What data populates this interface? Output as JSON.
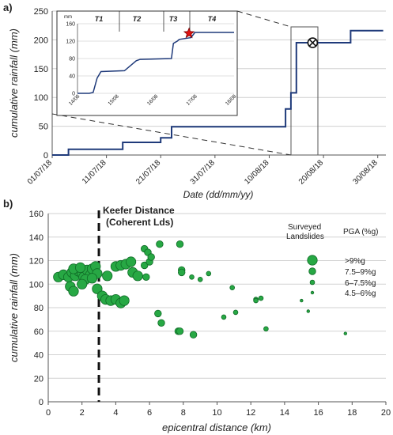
{
  "chart_data": [
    {
      "panel_label": "a)",
      "type": "line",
      "xlabel": "Date (dd/mm/yy)",
      "ylabel": "cumulative rainfall (mm)",
      "x_ticks": [
        "01/07/18",
        "11/07/18",
        "21/07/18",
        "31/07/18",
        "10/08/18",
        "20/08/18",
        "30/08/18"
      ],
      "ylim": [
        0,
        250
      ],
      "y_ticks": [
        "0",
        "50",
        "100",
        "150",
        "200",
        "250"
      ],
      "grid": "horizontal",
      "series": [
        {
          "color": "#1f3a7a",
          "x": [
            "01/07/18",
            "03/07/18",
            "04/07/18",
            "04/07/18",
            "14/07/18",
            "14/07/18",
            "21/07/18",
            "21/07/18",
            "23/07/18",
            "23/07/18",
            "13/08/18",
            "13/08/18",
            "14/08/18",
            "14/08/18",
            "14/08/18",
            "15/08/18",
            "15/08/18",
            "15/08/18",
            "20/08/18",
            "25/08/18",
            "25/08/18",
            "31/08/18"
          ],
          "values": [
            0,
            0,
            0,
            10,
            10,
            22,
            22,
            30,
            30,
            49,
            49,
            80,
            80,
            100,
            108,
            108,
            150,
            195,
            195,
            195,
            216,
            216
          ]
        }
      ],
      "annotations": [
        "event-marker at 18/08/18, 195 mm"
      ],
      "inset": {
        "y_unit": "mm",
        "ylim": [
          0,
          160
        ],
        "y_ticks": [
          "0",
          "40",
          "80",
          "120",
          "160"
        ],
        "x_ticks": [
          "14/08",
          "15/08",
          "16/08",
          "17/08",
          "18/08"
        ],
        "phases": [
          "T1",
          "T2",
          "T3",
          "T4"
        ],
        "series_x": [
          14.0,
          14.3,
          14.4,
          14.5,
          14.6,
          15.2,
          15.5,
          15.6,
          16.4,
          16.45,
          16.55,
          16.6,
          16.9,
          17.0,
          18.0
        ],
        "series_y": [
          0,
          0,
          2,
          35,
          50,
          52,
          75,
          78,
          80,
          115,
          120,
          124,
          128,
          140,
          140
        ],
        "star": {
          "x": 16.85,
          "y": 138
        }
      }
    },
    {
      "panel_label": "b)",
      "type": "scatter",
      "xlabel": "epicentral distance (km)",
      "ylabel": "cumulative rainfall (mm)",
      "xlim": [
        0,
        20
      ],
      "ylim": [
        0,
        160
      ],
      "x_ticks": [
        "0",
        "2",
        "4",
        "6",
        "8",
        "10",
        "12",
        "14",
        "16",
        "18",
        "20"
      ],
      "y_ticks": [
        "0",
        "20",
        "40",
        "60",
        "80",
        "100",
        "120",
        "140",
        "160"
      ],
      "grid": "horizontal",
      "reference_line": {
        "x": 3,
        "label_line1": "Keefer Distance",
        "label_line2": "(Coherent Lds)"
      },
      "legend": {
        "position": "top-right",
        "title_left_line1": "Surveyed",
        "title_left_line2": "Landslides",
        "title_right": "PGA (%g)",
        "entries": [
          {
            "label": ">9%g",
            "size": 4
          },
          {
            "label": "7.5–9%g",
            "size": 3
          },
          {
            "label": "6–7.5%g",
            "size": 2
          },
          {
            "label": "4.5–6%g",
            "size": 1
          }
        ]
      },
      "points": [
        {
          "x": 0.6,
          "y": 106,
          "s": 4
        },
        {
          "x": 0.9,
          "y": 108,
          "s": 4
        },
        {
          "x": 1.2,
          "y": 106,
          "s": 4
        },
        {
          "x": 1.4,
          "y": 110,
          "s": 4
        },
        {
          "x": 1.6,
          "y": 107,
          "s": 4
        },
        {
          "x": 1.8,
          "y": 111,
          "s": 4
        },
        {
          "x": 2.0,
          "y": 109,
          "s": 4
        },
        {
          "x": 2.1,
          "y": 106,
          "s": 4
        },
        {
          "x": 2.3,
          "y": 112,
          "s": 4
        },
        {
          "x": 2.5,
          "y": 108,
          "s": 4
        },
        {
          "x": 2.6,
          "y": 113,
          "s": 4
        },
        {
          "x": 2.8,
          "y": 115,
          "s": 4
        },
        {
          "x": 2.9,
          "y": 109,
          "s": 4
        },
        {
          "x": 1.5,
          "y": 113,
          "s": 4
        },
        {
          "x": 1.9,
          "y": 114,
          "s": 4
        },
        {
          "x": 2.2,
          "y": 104,
          "s": 4
        },
        {
          "x": 1.3,
          "y": 98,
          "s": 4
        },
        {
          "x": 1.5,
          "y": 94,
          "s": 4
        },
        {
          "x": 2.0,
          "y": 100,
          "s": 4
        },
        {
          "x": 2.6,
          "y": 105,
          "s": 4
        },
        {
          "x": 2.9,
          "y": 96,
          "s": 4
        },
        {
          "x": 3.2,
          "y": 90,
          "s": 4
        },
        {
          "x": 3.4,
          "y": 87,
          "s": 4
        },
        {
          "x": 3.7,
          "y": 86,
          "s": 4
        },
        {
          "x": 4.0,
          "y": 87,
          "s": 4
        },
        {
          "x": 4.3,
          "y": 84,
          "s": 4
        },
        {
          "x": 4.5,
          "y": 86,
          "s": 4
        },
        {
          "x": 3.5,
          "y": 107,
          "s": 4
        },
        {
          "x": 4.0,
          "y": 115,
          "s": 4
        },
        {
          "x": 4.3,
          "y": 116,
          "s": 4
        },
        {
          "x": 4.6,
          "y": 117,
          "s": 4
        },
        {
          "x": 4.9,
          "y": 119,
          "s": 4
        },
        {
          "x": 5.0,
          "y": 110,
          "s": 4
        },
        {
          "x": 5.3,
          "y": 107,
          "s": 4
        },
        {
          "x": 5.7,
          "y": 116,
          "s": 3
        },
        {
          "x": 5.8,
          "y": 106,
          "s": 3
        },
        {
          "x": 5.7,
          "y": 130,
          "s": 3
        },
        {
          "x": 5.9,
          "y": 127,
          "s": 3
        },
        {
          "x": 6.0,
          "y": 119,
          "s": 3
        },
        {
          "x": 6.1,
          "y": 123,
          "s": 3
        },
        {
          "x": 6.6,
          "y": 134,
          "s": 3
        },
        {
          "x": 7.8,
          "y": 134,
          "s": 3
        },
        {
          "x": 7.9,
          "y": 112,
          "s": 3
        },
        {
          "x": 7.9,
          "y": 110,
          "s": 3
        },
        {
          "x": 8.5,
          "y": 106,
          "s": 2
        },
        {
          "x": 9.0,
          "y": 104,
          "s": 2
        },
        {
          "x": 9.5,
          "y": 109,
          "s": 2
        },
        {
          "x": 6.5,
          "y": 75,
          "s": 3
        },
        {
          "x": 6.7,
          "y": 67,
          "s": 3
        },
        {
          "x": 7.7,
          "y": 60,
          "s": 3
        },
        {
          "x": 7.8,
          "y": 60,
          "s": 3
        },
        {
          "x": 8.6,
          "y": 57,
          "s": 3
        },
        {
          "x": 10.4,
          "y": 72,
          "s": 2
        },
        {
          "x": 10.9,
          "y": 97,
          "s": 2
        },
        {
          "x": 11.1,
          "y": 76,
          "s": 2
        },
        {
          "x": 12.3,
          "y": 87,
          "s": 2
        },
        {
          "x": 12.6,
          "y": 88,
          "s": 2
        },
        {
          "x": 12.9,
          "y": 62,
          "s": 2
        },
        {
          "x": 12.3,
          "y": 86,
          "s": 2
        },
        {
          "x": 15.0,
          "y": 86,
          "s": 1
        },
        {
          "x": 15.4,
          "y": 77,
          "s": 1
        },
        {
          "x": 17.6,
          "y": 58,
          "s": 1
        }
      ]
    }
  ]
}
